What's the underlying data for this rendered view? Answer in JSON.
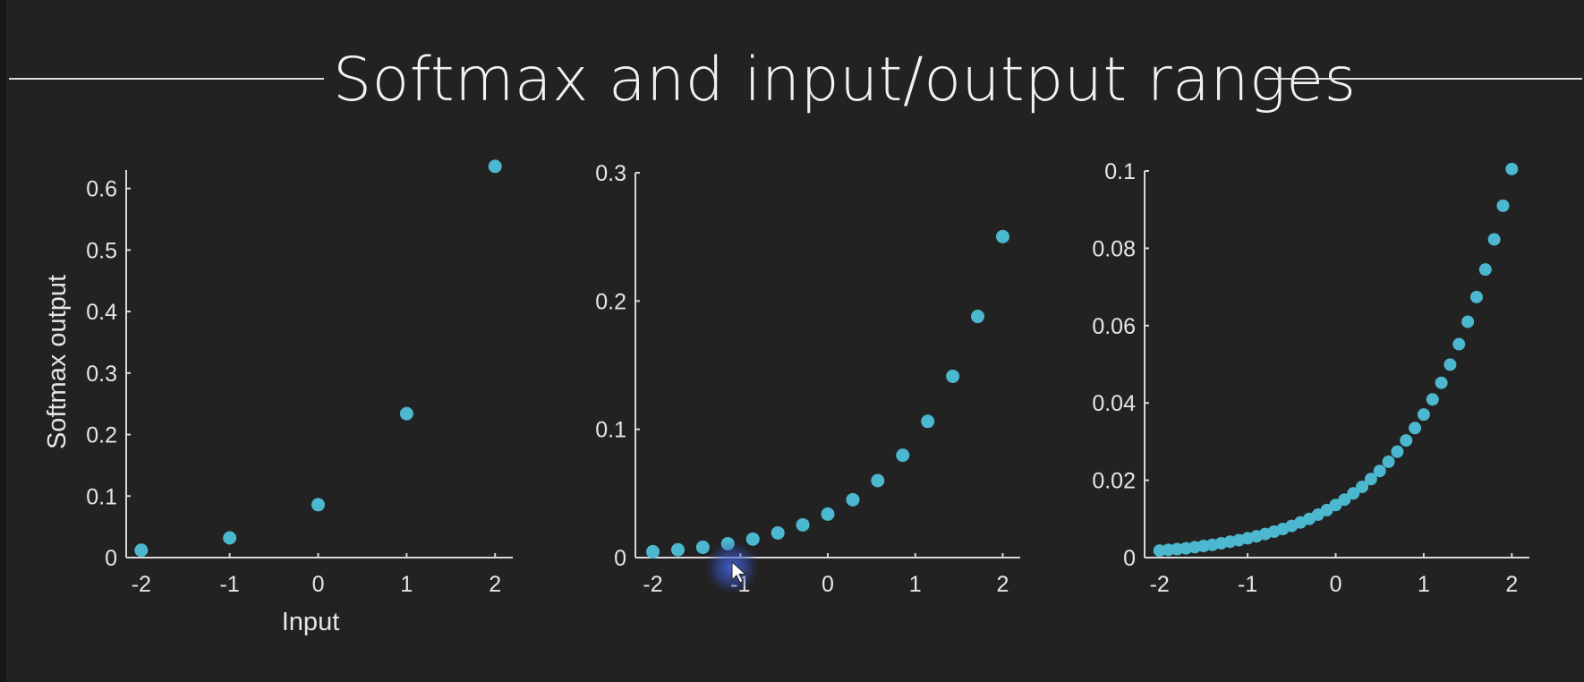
{
  "title": "Softmax and input/output ranges",
  "colors": {
    "marker": "#4cb8cf",
    "background": "#222222",
    "axis": "#d8d8d8",
    "text": "#e6e6e6"
  },
  "chart_data": [
    {
      "type": "scatter",
      "xlabel": "Input",
      "ylabel": "Softmax output",
      "xlim": [
        -2.17,
        2.2
      ],
      "ylim": [
        0,
        0.63
      ],
      "xticks": [
        -2,
        -1,
        0,
        1,
        2
      ],
      "yticks": [
        0,
        0.1,
        0.2,
        0.3,
        0.4,
        0.5,
        0.6
      ],
      "ytick_labels": [
        "0",
        "0.1",
        "0.2",
        "0.3",
        "0.4",
        "0.5",
        "0.6"
      ],
      "series": [
        {
          "x": [
            -2,
            -1,
            0,
            1,
            2
          ],
          "y": [
            0.012,
            0.032,
            0.086,
            0.234,
            0.636
          ]
        }
      ]
    },
    {
      "type": "scatter",
      "xlabel": "",
      "ylabel": "",
      "xlim": [
        -2.2,
        2.2
      ],
      "ylim": [
        0,
        0.3
      ],
      "xticks": [
        -2,
        -1,
        0,
        1,
        2
      ],
      "yticks": [
        0,
        0.1,
        0.2,
        0.3
      ],
      "ytick_labels": [
        "0",
        "0.1",
        "0.2",
        "0.3"
      ],
      "series": [
        {
          "x": [
            -2,
            -1.714,
            -1.429,
            -1.143,
            -0.857,
            -0.571,
            -0.286,
            0,
            0.286,
            0.571,
            0.857,
            1.143,
            1.429,
            1.714,
            2
          ],
          "y": [
            0.0046,
            0.0061,
            0.0081,
            0.0108,
            0.0144,
            0.0192,
            0.0255,
            0.0339,
            0.0451,
            0.06,
            0.0798,
            0.1062,
            0.1413,
            0.188,
            0.2502
          ]
        }
      ]
    },
    {
      "type": "scatter",
      "xlabel": "",
      "ylabel": "",
      "xlim": [
        -2.17,
        2.2
      ],
      "ylim": [
        0,
        0.1
      ],
      "xticks": [
        -2,
        -1,
        0,
        1,
        2
      ],
      "yticks": [
        0,
        0.02,
        0.04,
        0.06,
        0.08,
        0.1
      ],
      "ytick_labels": [
        "0",
        "0.02",
        "0.04",
        "0.06",
        "0.08",
        "0.1"
      ],
      "series": [
        {
          "x": [
            -2,
            -1.9,
            -1.8,
            -1.7,
            -1.6,
            -1.5,
            -1.4,
            -1.3,
            -1.2,
            -1.1,
            -1,
            -0.9,
            -0.8,
            -0.7,
            -0.6,
            -0.5,
            -0.4,
            -0.3,
            -0.2,
            -0.1,
            0,
            0.1,
            0.2,
            0.3,
            0.4,
            0.5,
            0.6,
            0.7,
            0.8,
            0.9,
            1,
            1.1,
            1.2,
            1.3,
            1.4,
            1.5,
            1.6,
            1.7,
            1.8,
            1.9,
            2
          ],
          "y": [
            0.0018,
            0.002,
            0.0022,
            0.0024,
            0.0027,
            0.003,
            0.0033,
            0.0037,
            0.0041,
            0.0045,
            0.005,
            0.0055,
            0.0061,
            0.0067,
            0.0074,
            0.0082,
            0.0091,
            0.01,
            0.0111,
            0.0123,
            0.0136,
            0.015,
            0.0166,
            0.0183,
            0.0203,
            0.0224,
            0.0248,
            0.0274,
            0.0303,
            0.0335,
            0.037,
            0.0409,
            0.0452,
            0.0499,
            0.0552,
            0.061,
            0.0674,
            0.0745,
            0.0823,
            0.091,
            0.1005
          ]
        }
      ]
    }
  ]
}
